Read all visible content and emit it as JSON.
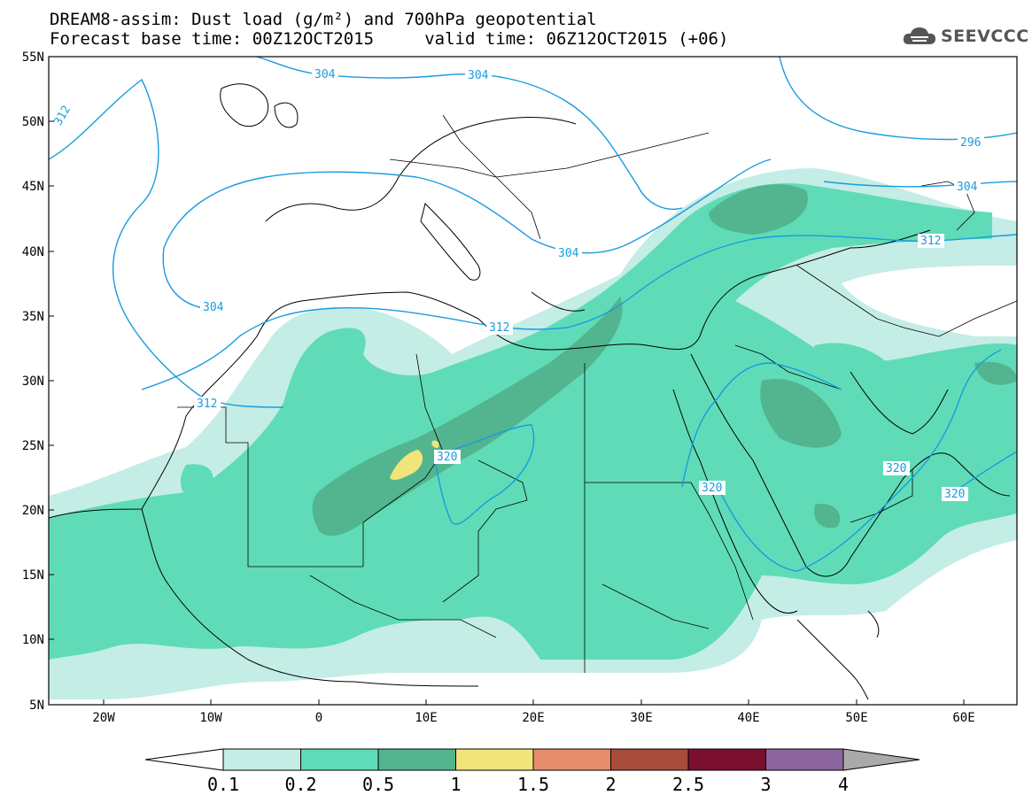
{
  "header": {
    "title_line1": "DREAM8-assim: Dust load (g/m²) and 700hPa geopotential",
    "title_line2": "Forecast base time: 00Z12OCT2015     valid time: 06Z12OCT2015 (+06)"
  },
  "logo": {
    "text": "SEEVCCC",
    "icon": "cloud-icon"
  },
  "map": {
    "lat_labels": [
      "55N",
      "50N",
      "45N",
      "40N",
      "35N",
      "30N",
      "25N",
      "20N",
      "15N",
      "10N",
      "5N"
    ],
    "lon_labels": [
      "20W",
      "10W",
      "0",
      "10E",
      "20E",
      "30E",
      "40E",
      "50E",
      "60E"
    ],
    "contour_labels": {
      "c304a": "304",
      "c304b": "304",
      "c304c": "304",
      "c304d": "304",
      "c312a": "312",
      "c312b": "312",
      "c312c": "312",
      "c312d": "312",
      "c320a": "320",
      "c320b": "320",
      "c320c": "320",
      "c320d": "320",
      "c296": "296",
      "c304e": "304"
    }
  },
  "legend": {
    "labels": [
      "0.1",
      "0.2",
      "0.5",
      "1",
      "1.5",
      "2",
      "2.5",
      "3",
      "4"
    ],
    "colors": [
      "#c4ede6",
      "#5fdcb7",
      "#52b58f",
      "#f1e47a",
      "#e88d6c",
      "#a84b3b",
      "#7b0f2f",
      "#8c659e",
      "#aaaaaa"
    ]
  },
  "colors": {
    "contour": "#1a9be0",
    "dust_0_1": "#c4ede6",
    "dust_0_2": "#5fdcb7",
    "dust_0_5": "#52b58f",
    "dust_1": "#f1e47a"
  }
}
